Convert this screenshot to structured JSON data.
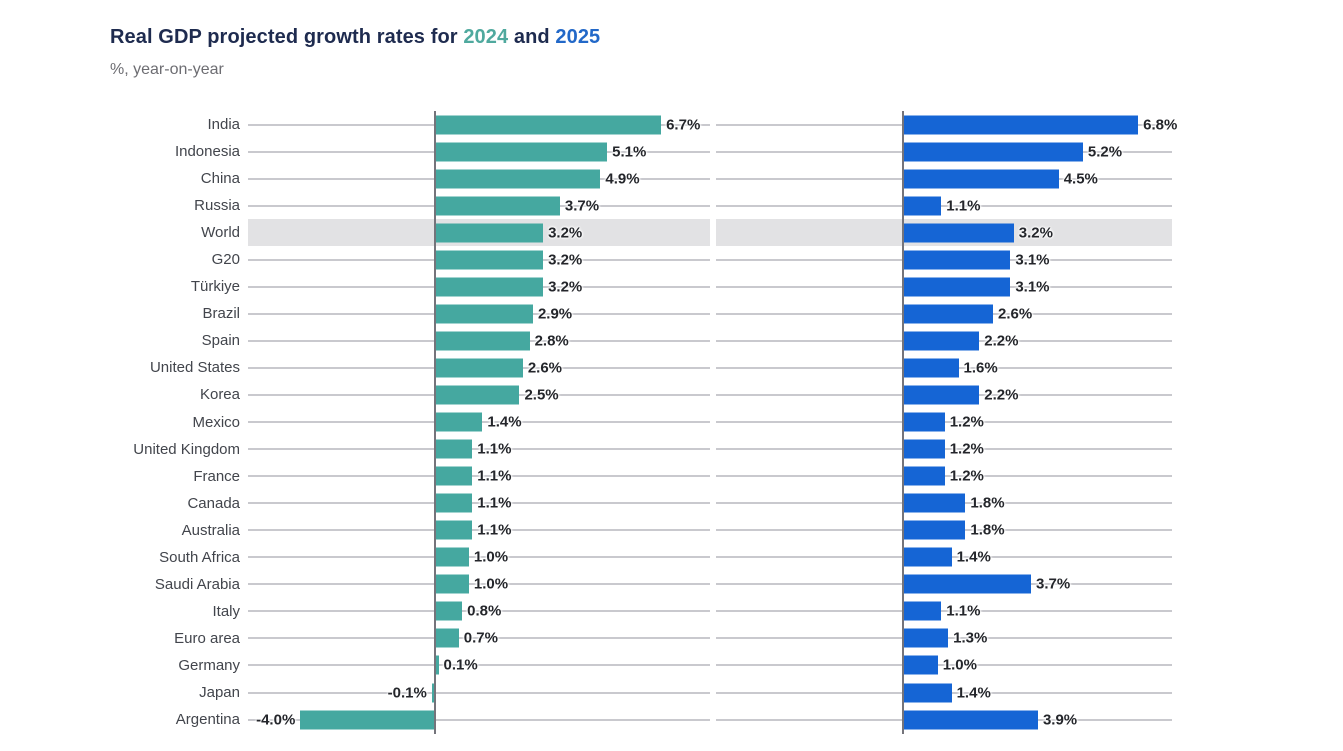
{
  "header": {
    "title_prefix": "Real GDP projected growth rates for ",
    "year1": "2024",
    "title_mid": " and ",
    "year2": "2025",
    "subtitle": "%, year-on-year"
  },
  "colors": {
    "teal_2024": "#45a8a0",
    "blue_2025": "#1565d5",
    "title_navy": "#1e2b4f",
    "highlight_band": "#e2e2e4",
    "gridline": "#c9c9ce",
    "axis_line": "#74747b",
    "category_text": "#42454c",
    "value_text": "#24262b"
  },
  "chart_data": {
    "type": "bar",
    "orientation": "horizontal",
    "title": "Real GDP projected growth rates for 2024 and 2025",
    "subtitle": "%, year-on-year",
    "unit": "%",
    "value_label_format": "one decimal + %",
    "grid": "horizontal line per category row",
    "legend_position": "in title (colored years)",
    "highlight_category": "World",
    "categories": [
      "India",
      "Indonesia",
      "China",
      "Russia",
      "World",
      "G20",
      "Türkiye",
      "Brazil",
      "Spain",
      "United States",
      "Korea",
      "Mexico",
      "United Kingdom",
      "France",
      "Canada",
      "Australia",
      "South Africa",
      "Saudi Arabia",
      "Italy",
      "Euro area",
      "Germany",
      "Japan",
      "Argentina"
    ],
    "series": [
      {
        "name": "2024",
        "color": "#45a8a0",
        "xlim": [
          -5.55,
          8.15
        ],
        "values": [
          6.7,
          5.1,
          4.9,
          3.7,
          3.2,
          3.2,
          3.2,
          2.9,
          2.8,
          2.6,
          2.5,
          1.4,
          1.1,
          1.1,
          1.1,
          1.1,
          1.0,
          1.0,
          0.8,
          0.7,
          0.1,
          -0.1,
          -4.0
        ]
      },
      {
        "name": "2025",
        "color": "#1565d5",
        "xlim": [
          -5.42,
          7.78
        ],
        "values": [
          6.8,
          5.2,
          4.5,
          1.1,
          3.2,
          3.1,
          3.1,
          2.6,
          2.2,
          1.6,
          2.2,
          1.2,
          1.2,
          1.2,
          1.8,
          1.8,
          1.4,
          3.7,
          1.1,
          1.3,
          1.0,
          1.4,
          3.9
        ]
      }
    ]
  }
}
